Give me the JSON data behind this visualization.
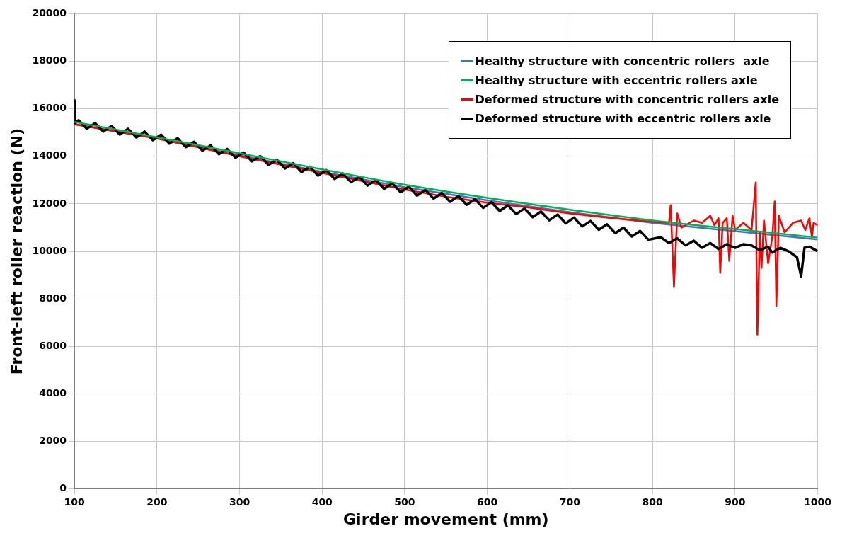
{
  "chart_data": {
    "type": "line",
    "xlabel": "Girder movement (mm)",
    "ylabel": "Front-left roller reaction (N)",
    "xlim": [
      100,
      1000
    ],
    "xticks": [
      100,
      200,
      300,
      400,
      500,
      600,
      700,
      800,
      900,
      1000
    ],
    "ylim": [
      0,
      20000
    ],
    "yticks": [
      0,
      2000,
      4000,
      6000,
      8000,
      10000,
      12000,
      14000,
      16000,
      18000,
      20000
    ],
    "grid": true,
    "legend": "top right",
    "marker": "none",
    "line_style": "solid",
    "series": [
      {
        "name": "Healthy structure with concentric rollers  axle",
        "color": "#4472c4",
        "x": [
          100,
          200,
          300,
          400,
          500,
          600,
          700,
          800,
          900,
          1000
        ],
        "values": [
          15350,
          14750,
          14050,
          13350,
          12700,
          12150,
          11650,
          11200,
          10850,
          10500
        ]
      },
      {
        "name": "Healthy structure with eccentric rollers axle",
        "color": "#00b050",
        "x": [
          100,
          150,
          200,
          250,
          300,
          350,
          400,
          450,
          500,
          550,
          600,
          650,
          700,
          750,
          800,
          850,
          900,
          950,
          1000
        ],
        "values": [
          15450,
          15130,
          14800,
          14470,
          14130,
          13790,
          13450,
          13120,
          12800,
          12520,
          12250,
          12000,
          11750,
          11520,
          11300,
          11110,
          10940,
          10760,
          10580
        ]
      },
      {
        "name": "Deformed structure with concentric rollers axle",
        "color": "#ff0000",
        "x": [
          100,
          150,
          200,
          250,
          300,
          350,
          400,
          450,
          500,
          550,
          600,
          650,
          700,
          750,
          800,
          820,
          822,
          826,
          830,
          835,
          850,
          860,
          870,
          875,
          880,
          882,
          885,
          890,
          893,
          897,
          900,
          910,
          920,
          925,
          927,
          930,
          932,
          935,
          940,
          945,
          948,
          950,
          953,
          960,
          970,
          980,
          985,
          990,
          993,
          995,
          1000
        ],
        "values": [
          15350,
          15050,
          14750,
          14380,
          14000,
          13650,
          13300,
          12950,
          12600,
          12300,
          12050,
          11850,
          11600,
          11400,
          11250,
          11200,
          11950,
          8500,
          11600,
          11000,
          11300,
          11200,
          11500,
          11100,
          11400,
          9100,
          11200,
          11400,
          9600,
          11500,
          10900,
          11200,
          10900,
          12900,
          6500,
          10800,
          9300,
          11300,
          9500,
          10600,
          12100,
          7700,
          11500,
          10800,
          11200,
          11300,
          10900,
          11400,
          10600,
          11200,
          11100
        ]
      },
      {
        "name": "Deformed structure with eccentric rollers axle",
        "color": "#000000",
        "x": [
          100,
          101,
          105,
          115,
          125,
          135,
          145,
          155,
          165,
          175,
          185,
          195,
          205,
          215,
          225,
          235,
          245,
          255,
          265,
          275,
          285,
          295,
          305,
          315,
          325,
          335,
          345,
          355,
          365,
          375,
          385,
          395,
          405,
          415,
          425,
          435,
          445,
          455,
          465,
          475,
          485,
          495,
          505,
          515,
          525,
          535,
          545,
          555,
          565,
          575,
          585,
          595,
          605,
          615,
          625,
          635,
          645,
          655,
          665,
          675,
          685,
          695,
          705,
          715,
          725,
          735,
          745,
          755,
          765,
          775,
          785,
          795,
          810,
          820,
          830,
          840,
          850,
          860,
          870,
          880,
          890,
          900,
          910,
          920,
          930,
          940,
          945,
          955,
          965,
          975,
          980,
          984,
          990,
          1000
        ],
        "values": [
          16400,
          15400,
          15520,
          15160,
          15400,
          15040,
          15280,
          14920,
          15160,
          14800,
          15040,
          14680,
          14910,
          14540,
          14760,
          14390,
          14610,
          14240,
          14460,
          14090,
          14310,
          13940,
          14160,
          13790,
          14010,
          13640,
          13860,
          13490,
          13710,
          13340,
          13560,
          13190,
          13420,
          13050,
          13280,
          12910,
          13140,
          12770,
          13000,
          12630,
          12860,
          12490,
          12720,
          12350,
          12590,
          12220,
          12460,
          12090,
          12330,
          11960,
          12200,
          11830,
          12070,
          11700,
          11940,
          11570,
          11810,
          11440,
          11680,
          11310,
          11550,
          11180,
          11420,
          11050,
          11280,
          10910,
          11140,
          10770,
          11000,
          10630,
          10860,
          10490,
          10600,
          10350,
          10550,
          10250,
          10450,
          10150,
          10350,
          10100,
          10300,
          10150,
          10300,
          10250,
          10050,
          10200,
          9950,
          10150,
          10000,
          9750,
          8950,
          10150,
          10200,
          10000
        ]
      }
    ]
  }
}
